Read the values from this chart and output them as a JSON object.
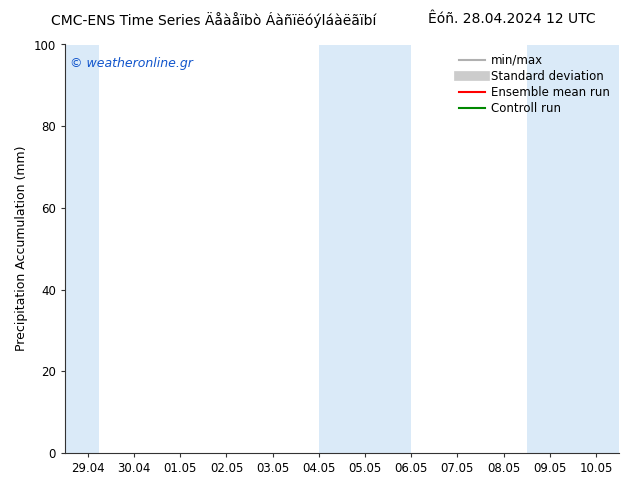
{
  "title_left": "CMC-ENS Time Series Äåàåïbò Áàñïëóýláàëãïbí",
  "title_right": "Êóñ. 28.04.2024 12 UTC",
  "ylabel": "Precipitation Accumulation (mm)",
  "ylim": [
    0,
    100
  ],
  "xtick_labels": [
    "29.04",
    "30.04",
    "01.05",
    "02.05",
    "03.05",
    "04.05",
    "05.05",
    "06.05",
    "07.05",
    "08.05",
    "09.05",
    "10.05"
  ],
  "xtick_positions": [
    0,
    1,
    2,
    3,
    4,
    5,
    6,
    7,
    8,
    9,
    10,
    11
  ],
  "xlim": [
    -0.5,
    11.5
  ],
  "shade_bands": [
    {
      "x_start": -0.5,
      "x_end": 0.25
    },
    {
      "x_start": 5.0,
      "x_end": 7.0
    },
    {
      "x_start": 9.5,
      "x_end": 11.5
    }
  ],
  "shade_color": "#daeaf8",
  "bg_color": "#ffffff",
  "plot_bg_color": "#ffffff",
  "watermark_text": "© weatheronline.gr",
  "watermark_color": "#1155cc",
  "legend_items": [
    {
      "label": "min/max",
      "color": "#b0b0b0",
      "lw": 1.5,
      "style": "solid"
    },
    {
      "label": "Standard deviation",
      "color": "#cccccc",
      "lw": 7,
      "style": "solid"
    },
    {
      "label": "Ensemble mean run",
      "color": "#ff0000",
      "lw": 1.5,
      "style": "solid"
    },
    {
      "label": "Controll run",
      "color": "#008800",
      "lw": 1.5,
      "style": "solid"
    }
  ],
  "title_fontsize": 10,
  "tick_fontsize": 8.5,
  "ylabel_fontsize": 9,
  "watermark_fontsize": 9,
  "legend_fontsize": 8.5
}
